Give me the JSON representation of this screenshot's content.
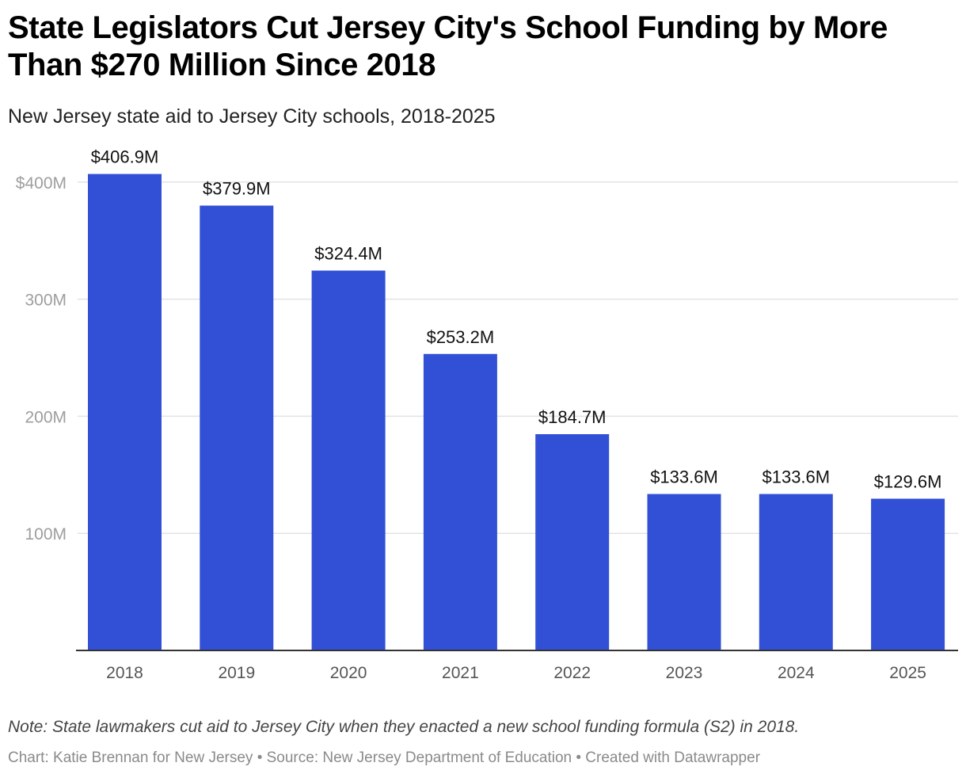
{
  "chart_data": {
    "type": "bar",
    "title": "State Legislators Cut Jersey City's School Funding by More Than $270 Million Since 2018",
    "subtitle": "New Jersey state aid to Jersey City schools, 2018-2025",
    "xlabel": "",
    "ylabel": "",
    "categories": [
      "2018",
      "2019",
      "2020",
      "2021",
      "2022",
      "2023",
      "2024",
      "2025"
    ],
    "values": [
      406.9,
      379.9,
      324.4,
      253.2,
      184.7,
      133.6,
      133.6,
      129.6
    ],
    "value_labels": [
      "$406.9M",
      "$379.9M",
      "$324.4M",
      "$253.2M",
      "$184.7M",
      "$133.6M",
      "$133.6M",
      "$129.6M"
    ],
    "ylim": [
      0,
      400
    ],
    "yticks": [
      100,
      200,
      300,
      400
    ],
    "ytick_labels": [
      "100M",
      "200M",
      "300M",
      "$400M"
    ],
    "grid": true,
    "units": "millions of dollars",
    "note": "Note: State lawmakers cut aid to Jersey City when they enacted a new school funding formula (S2) in 2018.",
    "credits": "Chart: Katie Brennan for New Jersey • Source: New Jersey Department of Education • Created with Datawrapper"
  },
  "colors": {
    "bar": "#3150d5",
    "grid": "#e3e3e3",
    "axis": "#333333"
  }
}
